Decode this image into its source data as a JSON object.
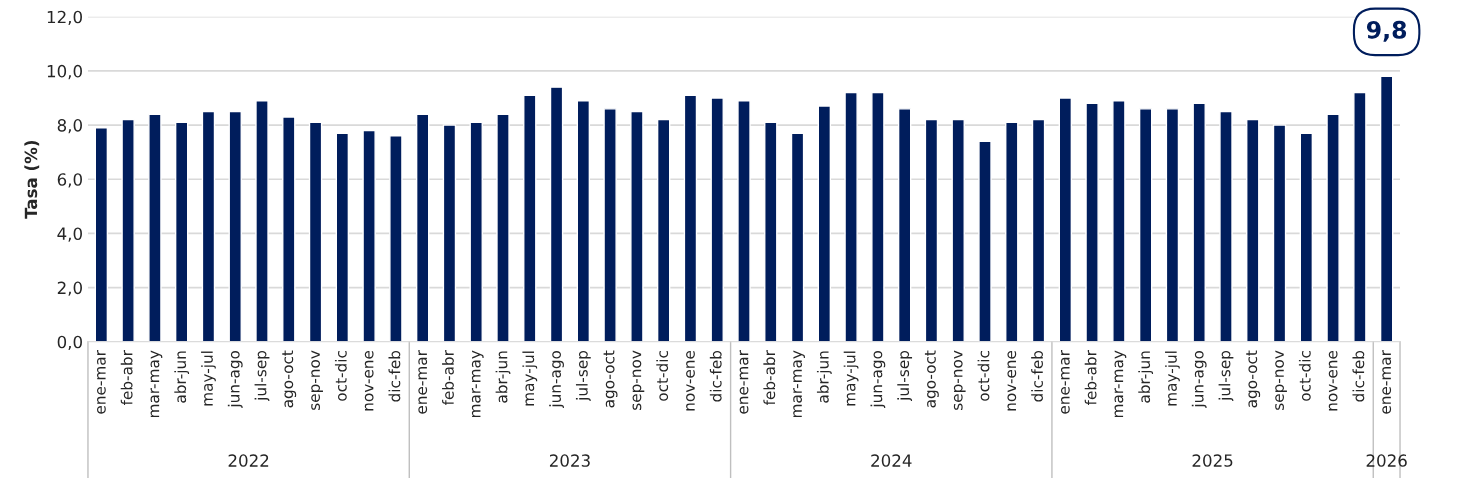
{
  "chart_data": {
    "type": "bar",
    "ylabel": "Tasa (%)",
    "categories": [
      "ene-mar",
      "feb-abr",
      "mar-may",
      "abr-jun",
      "may-jul",
      "jun-ago",
      "jul-sep",
      "ago-oct",
      "sep-nov",
      "oct-dic",
      "nov-ene",
      "dic-feb",
      "ene-mar",
      "feb-abr",
      "mar-may",
      "abr-jun",
      "may-jul",
      "jun-ago",
      "jul-sep",
      "ago-oct",
      "sep-nov",
      "oct-dic",
      "nov-ene",
      "dic-feb",
      "ene-mar",
      "feb-abr",
      "mar-may",
      "abr-jun",
      "may-jul",
      "jun-ago",
      "jul-sep",
      "ago-oct",
      "sep-nov",
      "oct-dic",
      "nov-ene",
      "dic-feb",
      "ene-mar",
      "feb-abr",
      "mar-may",
      "abr-jun",
      "may-jul",
      "jun-ago",
      "jul-sep",
      "ago-oct",
      "sep-nov",
      "oct-dic",
      "nov-ene",
      "dic-feb",
      "ene-mar"
    ],
    "values": [
      7.9,
      8.2,
      8.4,
      8.1,
      8.5,
      8.5,
      8.9,
      8.3,
      8.1,
      7.7,
      7.8,
      7.6,
      8.4,
      8.0,
      8.1,
      8.4,
      9.1,
      9.4,
      8.9,
      8.6,
      8.5,
      8.2,
      9.1,
      9.0,
      8.9,
      8.1,
      7.7,
      8.7,
      9.2,
      9.2,
      8.6,
      8.2,
      8.2,
      7.4,
      8.1,
      8.2,
      9.0,
      8.8,
      8.9,
      8.6,
      8.6,
      8.8,
      8.5,
      8.2,
      8.0,
      7.7,
      8.4,
      9.2,
      9.8
    ],
    "value_labels": [
      null,
      null,
      null,
      null,
      null,
      null,
      null,
      null,
      null,
      null,
      null,
      null,
      null,
      null,
      null,
      null,
      null,
      null,
      null,
      null,
      null,
      null,
      null,
      null,
      null,
      null,
      null,
      null,
      null,
      null,
      null,
      null,
      null,
      null,
      null,
      null,
      null,
      null,
      null,
      null,
      null,
      null,
      null,
      null,
      null,
      null,
      null,
      null,
      "9,8"
    ],
    "color": "#001d5c",
    "ylim": [
      0,
      12
    ],
    "yticks": [
      {
        "value": 0,
        "label": "0,0"
      },
      {
        "value": 2,
        "label": "2,0"
      },
      {
        "value": 4,
        "label": "4,0"
      },
      {
        "value": 6,
        "label": "6,0"
      },
      {
        "value": 8,
        "label": "8,0"
      },
      {
        "value": 10,
        "label": "10,0"
      },
      {
        "value": 12,
        "label": "12,0"
      }
    ],
    "grid": "y",
    "annotations": [
      "2022",
      "2023",
      "2024",
      "2025",
      "2026"
    ]
  }
}
